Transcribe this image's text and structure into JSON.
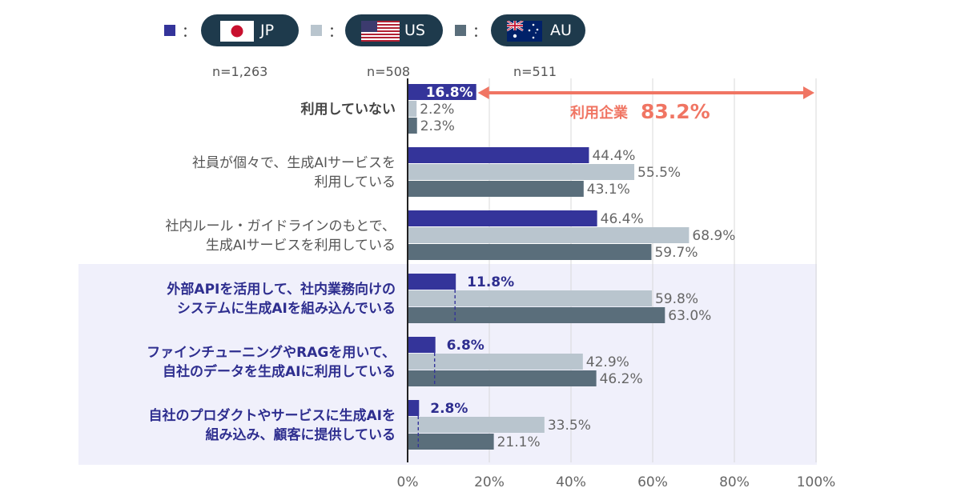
{
  "legend": [
    {
      "code": "JP",
      "n": "n=1,263",
      "color": "#34349a",
      "colon": "："
    },
    {
      "code": "US",
      "n": "n=508",
      "color": "#b9c5ce",
      "colon": "："
    },
    {
      "code": "AU",
      "n": "n=511",
      "color": "#5a6e7b",
      "colon": "："
    }
  ],
  "annotation": {
    "label": "利用企業",
    "value": "83.2%",
    "color": "#f07563"
  },
  "chart_data": {
    "type": "bar",
    "orientation": "horizontal",
    "categories": [
      {
        "lines": [
          "利用していない"
        ],
        "bold": true,
        "highlight": false
      },
      {
        "lines": [
          "社員が個々で、生成AIサービスを",
          "利用している"
        ],
        "bold": false,
        "highlight": false
      },
      {
        "lines": [
          "社内ルール・ガイドラインのもとで、",
          "生成AIサービスを利用している"
        ],
        "bold": false,
        "highlight": false
      },
      {
        "lines": [
          "外部APIを活用して、社内業務向けの",
          "システムに生成AIを組み込んでいる"
        ],
        "bold": true,
        "highlight": true
      },
      {
        "lines": [
          "ファインチューニングやRAGを用いて、",
          "自社のデータを生成AIに利用している"
        ],
        "bold": true,
        "highlight": true
      },
      {
        "lines": [
          "自社のプロダクトやサービスに生成AIを",
          "組み込み、顧客に提供している"
        ],
        "bold": true,
        "highlight": true
      }
    ],
    "series": [
      {
        "name": "JP",
        "color": "#34349a",
        "values": [
          16.8,
          44.4,
          46.4,
          11.8,
          6.8,
          2.8
        ],
        "labels": [
          "16.8%",
          "44.4%",
          "46.4%",
          "11.8%",
          "6.8%",
          "2.8%"
        ]
      },
      {
        "name": "US",
        "color": "#b9c5ce",
        "values": [
          2.2,
          55.5,
          68.9,
          59.8,
          42.9,
          33.5
        ],
        "labels": [
          "2.2%",
          "55.5%",
          "68.9%",
          "59.8%",
          "42.9%",
          "33.5%"
        ]
      },
      {
        "name": "AU",
        "color": "#5a6e7b",
        "values": [
          2.3,
          43.1,
          59.7,
          63.0,
          46.2,
          21.1
        ],
        "labels": [
          "2.3%",
          "43.1%",
          "59.7%",
          "63.0%",
          "46.2%",
          "21.1%"
        ]
      }
    ],
    "xlim": [
      0,
      100
    ],
    "xticks": [
      "0%",
      "20%",
      "40%",
      "60%",
      "80%",
      "100%"
    ],
    "grid": true,
    "legend": "top"
  }
}
